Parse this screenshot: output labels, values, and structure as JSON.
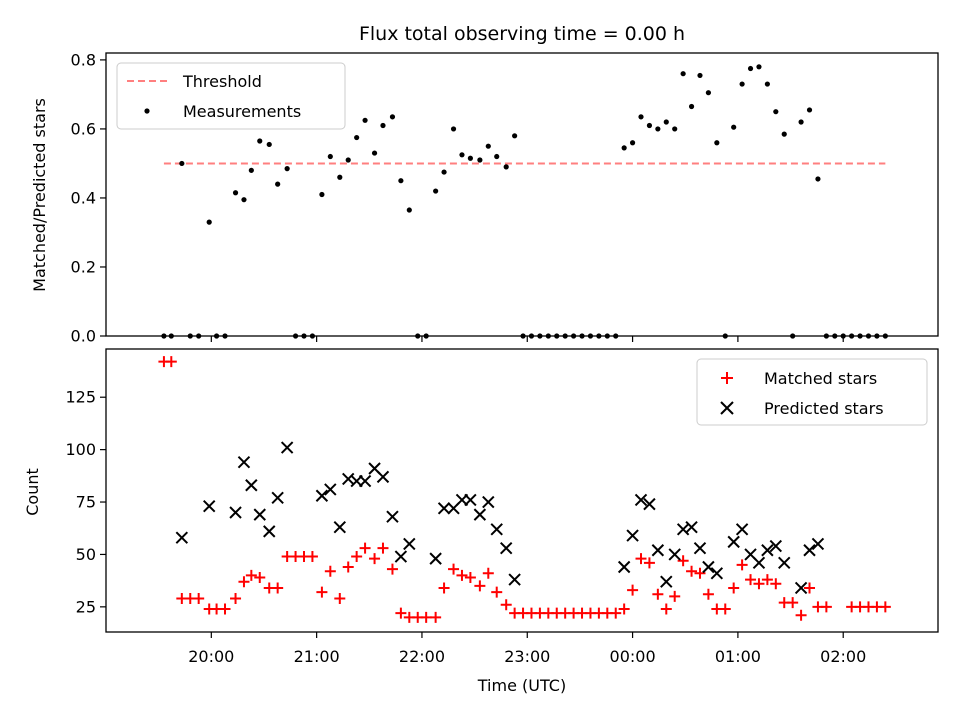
{
  "chart_data": [
    {
      "type": "scatter",
      "title": "Flux total observing time = 0.00 h",
      "xlabel": "",
      "ylabel": "Matched/Predicted stars",
      "ylim": [
        0,
        0.82
      ],
      "yticks": [
        0,
        0.2,
        0.4,
        0.6,
        0.8
      ],
      "ytick_labels": [
        "0.0",
        "0.2",
        "0.4",
        "0.6",
        "0.8"
      ],
      "xticks_hours": [
        20,
        21,
        22,
        23,
        24,
        25,
        26
      ],
      "xlim_hours": [
        19.0,
        26.9
      ],
      "legend": {
        "placement": "top-left",
        "entries": [
          "Threshold",
          "Measurements"
        ]
      },
      "series": [
        {
          "name": "Threshold",
          "kind": "dashed-line",
          "color": "#ff7f7f",
          "x_hours": [
            19.55,
            26.4
          ],
          "y": [
            0.5,
            0.5
          ]
        },
        {
          "name": "Measurements",
          "kind": "dots",
          "color": "#000000",
          "points": [
            [
              19.55,
              0.0
            ],
            [
              19.62,
              0.0
            ],
            [
              19.72,
              0.5
            ],
            [
              19.8,
              0.0
            ],
            [
              19.88,
              0.0
            ],
            [
              19.98,
              0.33
            ],
            [
              20.05,
              0.0
            ],
            [
              20.13,
              0.0
            ],
            [
              20.23,
              0.415
            ],
            [
              20.31,
              0.395
            ],
            [
              20.38,
              0.48
            ],
            [
              20.46,
              0.565
            ],
            [
              20.55,
              0.555
            ],
            [
              20.63,
              0.44
            ],
            [
              20.72,
              0.485
            ],
            [
              20.8,
              0.0
            ],
            [
              20.88,
              0.0
            ],
            [
              20.96,
              0.0
            ],
            [
              21.05,
              0.41
            ],
            [
              21.13,
              0.52
            ],
            [
              21.22,
              0.46
            ],
            [
              21.3,
              0.51
            ],
            [
              21.38,
              0.575
            ],
            [
              21.46,
              0.625
            ],
            [
              21.55,
              0.53
            ],
            [
              21.63,
              0.61
            ],
            [
              21.72,
              0.635
            ],
            [
              21.8,
              0.45
            ],
            [
              21.88,
              0.365
            ],
            [
              21.96,
              0.0
            ],
            [
              22.04,
              0.0
            ],
            [
              22.13,
              0.42
            ],
            [
              22.21,
              0.475
            ],
            [
              22.3,
              0.6
            ],
            [
              22.38,
              0.525
            ],
            [
              22.46,
              0.515
            ],
            [
              22.55,
              0.51
            ],
            [
              22.63,
              0.55
            ],
            [
              22.71,
              0.52
            ],
            [
              22.8,
              0.49
            ],
            [
              22.88,
              0.58
            ],
            [
              22.96,
              0.0
            ],
            [
              23.04,
              0.0
            ],
            [
              23.12,
              0.0
            ],
            [
              23.2,
              0.0
            ],
            [
              23.28,
              0.0
            ],
            [
              23.36,
              0.0
            ],
            [
              23.44,
              0.0
            ],
            [
              23.52,
              0.0
            ],
            [
              23.6,
              0.0
            ],
            [
              23.68,
              0.0
            ],
            [
              23.76,
              0.0
            ],
            [
              23.84,
              0.0
            ],
            [
              23.92,
              0.545
            ],
            [
              24.0,
              0.56
            ],
            [
              24.08,
              0.635
            ],
            [
              24.16,
              0.61
            ],
            [
              24.24,
              0.6
            ],
            [
              24.32,
              0.62
            ],
            [
              24.4,
              0.6
            ],
            [
              24.48,
              0.76
            ],
            [
              24.56,
              0.665
            ],
            [
              24.64,
              0.755
            ],
            [
              24.72,
              0.705
            ],
            [
              24.8,
              0.56
            ],
            [
              24.88,
              0.0
            ],
            [
              24.96,
              0.605
            ],
            [
              25.04,
              0.73
            ],
            [
              25.12,
              0.775
            ],
            [
              25.2,
              0.78
            ],
            [
              25.28,
              0.73
            ],
            [
              25.36,
              0.65
            ],
            [
              25.44,
              0.585
            ],
            [
              25.52,
              0.0
            ],
            [
              25.6,
              0.62
            ],
            [
              25.68,
              0.655
            ],
            [
              25.76,
              0.455
            ],
            [
              25.84,
              0.0
            ],
            [
              25.92,
              0.0
            ],
            [
              26.0,
              0.0
            ],
            [
              26.08,
              0.0
            ],
            [
              26.16,
              0.0
            ],
            [
              26.24,
              0.0
            ],
            [
              26.32,
              0.0
            ],
            [
              26.4,
              0.0
            ]
          ]
        }
      ]
    },
    {
      "type": "scatter",
      "title": "",
      "xlabel": "Time (UTC)",
      "ylabel": "Count",
      "ylim": [
        13,
        148
      ],
      "yticks": [
        25,
        50,
        75,
        100,
        125
      ],
      "ytick_labels": [
        "25",
        "50",
        "75",
        "100",
        "125"
      ],
      "xticks_hours": [
        20,
        21,
        22,
        23,
        24,
        25,
        26
      ],
      "xtick_labels": [
        "20:00",
        "21:00",
        "22:00",
        "23:00",
        "00:00",
        "01:00",
        "02:00"
      ],
      "xlim_hours": [
        19.0,
        26.9
      ],
      "legend": {
        "placement": "top-right",
        "entries": [
          "Matched stars",
          "Predicted stars"
        ]
      },
      "series": [
        {
          "name": "Matched stars",
          "kind": "plus",
          "color": "#ff0000",
          "points": [
            [
              19.55,
              142
            ],
            [
              19.62,
              142
            ],
            [
              19.72,
              29
            ],
            [
              19.8,
              29
            ],
            [
              19.88,
              29
            ],
            [
              19.98,
              24
            ],
            [
              20.05,
              24
            ],
            [
              20.13,
              24
            ],
            [
              20.23,
              29
            ],
            [
              20.31,
              37
            ],
            [
              20.38,
              40
            ],
            [
              20.46,
              39
            ],
            [
              20.55,
              34
            ],
            [
              20.63,
              34
            ],
            [
              20.72,
              49
            ],
            [
              20.8,
              49
            ],
            [
              20.88,
              49
            ],
            [
              20.96,
              49
            ],
            [
              21.05,
              32
            ],
            [
              21.13,
              42
            ],
            [
              21.22,
              29
            ],
            [
              21.3,
              44
            ],
            [
              21.38,
              49
            ],
            [
              21.46,
              53
            ],
            [
              21.55,
              48
            ],
            [
              21.63,
              53
            ],
            [
              21.72,
              43
            ],
            [
              21.8,
              22
            ],
            [
              21.88,
              20
            ],
            [
              21.96,
              20
            ],
            [
              22.04,
              20
            ],
            [
              22.13,
              20
            ],
            [
              22.21,
              34
            ],
            [
              22.3,
              43
            ],
            [
              22.38,
              40
            ],
            [
              22.46,
              39
            ],
            [
              22.55,
              35
            ],
            [
              22.63,
              41
            ],
            [
              22.71,
              32
            ],
            [
              22.8,
              26
            ],
            [
              22.88,
              22
            ],
            [
              22.96,
              22
            ],
            [
              23.04,
              22
            ],
            [
              23.12,
              22
            ],
            [
              23.2,
              22
            ],
            [
              23.28,
              22
            ],
            [
              23.36,
              22
            ],
            [
              23.44,
              22
            ],
            [
              23.52,
              22
            ],
            [
              23.6,
              22
            ],
            [
              23.68,
              22
            ],
            [
              23.76,
              22
            ],
            [
              23.84,
              22
            ],
            [
              23.92,
              24
            ],
            [
              24.0,
              33
            ],
            [
              24.08,
              48
            ],
            [
              24.16,
              46
            ],
            [
              24.24,
              31
            ],
            [
              24.32,
              24
            ],
            [
              24.4,
              30
            ],
            [
              24.48,
              47
            ],
            [
              24.56,
              42
            ],
            [
              24.64,
              41
            ],
            [
              24.72,
              31
            ],
            [
              24.8,
              24
            ],
            [
              24.88,
              24
            ],
            [
              24.96,
              34
            ],
            [
              25.04,
              45
            ],
            [
              25.12,
              38
            ],
            [
              25.2,
              36
            ],
            [
              25.28,
              38
            ],
            [
              25.36,
              36
            ],
            [
              25.44,
              27
            ],
            [
              25.52,
              27
            ],
            [
              25.6,
              21
            ],
            [
              25.68,
              34
            ],
            [
              25.76,
              25
            ],
            [
              25.84,
              25
            ],
            [
              26.08,
              25
            ],
            [
              26.16,
              25
            ],
            [
              26.24,
              25
            ],
            [
              26.32,
              25
            ],
            [
              26.4,
              25
            ]
          ]
        },
        {
          "name": "Predicted stars",
          "kind": "x",
          "color": "#000000",
          "points": [
            [
              19.72,
              58
            ],
            [
              19.98,
              73
            ],
            [
              20.23,
              70
            ],
            [
              20.31,
              94
            ],
            [
              20.38,
              83
            ],
            [
              20.46,
              69
            ],
            [
              20.55,
              61
            ],
            [
              20.63,
              77
            ],
            [
              20.72,
              101
            ],
            [
              21.05,
              78
            ],
            [
              21.13,
              81
            ],
            [
              21.22,
              63
            ],
            [
              21.3,
              86
            ],
            [
              21.38,
              85
            ],
            [
              21.46,
              85
            ],
            [
              21.55,
              91
            ],
            [
              21.63,
              87
            ],
            [
              21.72,
              68
            ],
            [
              21.8,
              49
            ],
            [
              21.88,
              55
            ],
            [
              22.13,
              48
            ],
            [
              22.21,
              72
            ],
            [
              22.3,
              72
            ],
            [
              22.38,
              76
            ],
            [
              22.46,
              76
            ],
            [
              22.55,
              69
            ],
            [
              22.63,
              75
            ],
            [
              22.71,
              62
            ],
            [
              22.8,
              53
            ],
            [
              22.88,
              38
            ],
            [
              23.92,
              44
            ],
            [
              24.0,
              59
            ],
            [
              24.08,
              76
            ],
            [
              24.16,
              74
            ],
            [
              24.24,
              52
            ],
            [
              24.32,
              37
            ],
            [
              24.4,
              50
            ],
            [
              24.48,
              62
            ],
            [
              24.56,
              63
            ],
            [
              24.64,
              53
            ],
            [
              24.72,
              44
            ],
            [
              24.8,
              41
            ],
            [
              24.96,
              56
            ],
            [
              25.04,
              62
            ],
            [
              25.12,
              50
            ],
            [
              25.2,
              46
            ],
            [
              25.28,
              52
            ],
            [
              25.36,
              54
            ],
            [
              25.44,
              46
            ],
            [
              25.6,
              34
            ],
            [
              25.68,
              52
            ],
            [
              25.76,
              55
            ]
          ]
        }
      ]
    }
  ]
}
